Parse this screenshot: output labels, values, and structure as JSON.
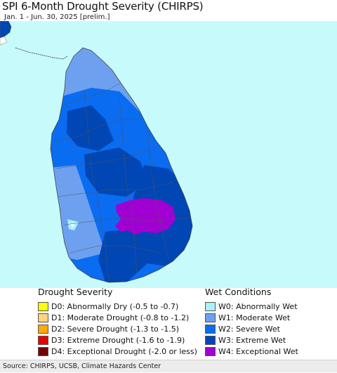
{
  "title": "SPI 6-Month Drought Severity (CHIRPS)",
  "subtitle": "Jan. 1 - Jun. 30, 2025 [prelim.]",
  "colors": {
    "ocean": "#c7fbfb",
    "land_outside": "#ffffff",
    "border": "#555555"
  },
  "legend": {
    "drought": {
      "heading": "Drought Severity",
      "items": [
        {
          "label": "D0: Abnormally Dry (-0.5 to -0.7)",
          "color": "#ffff00"
        },
        {
          "label": "D1: Moderate Drought (-0.8 to -1.2)",
          "color": "#fcd37f"
        },
        {
          "label": "D2: Severe Drought (-1.3 to -1.5)",
          "color": "#ffaa00"
        },
        {
          "label": "D3: Extreme Drought (-1.6 to -1.9)",
          "color": "#e60000"
        },
        {
          "label": "D4: Exceptional Drought (-2.0 or less)",
          "color": "#730000"
        }
      ]
    },
    "wet": {
      "heading": "Wet Conditions",
      "items": [
        {
          "label": "W0: Abnormally Wet",
          "color": "#aaf0ff"
        },
        {
          "label": "W1: Moderate Wet",
          "color": "#6ea0f0"
        },
        {
          "label": "W2: Severe Wet",
          "color": "#0a6cf0"
        },
        {
          "label": "W3: Extreme Wet",
          "color": "#0046b4"
        },
        {
          "label": "W4: Exceptional Wet",
          "color": "#a000d2"
        }
      ]
    }
  },
  "source": "Source: CHIRPS, UCSB, Climate Hazards Center"
}
